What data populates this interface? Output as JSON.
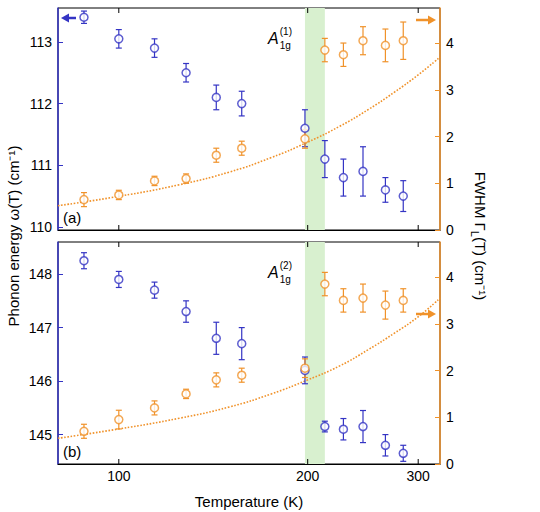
{
  "chart_data": [
    {
      "type": "scatter",
      "panel_label": "(a)",
      "annotation": {
        "text": "A",
        "sub": "1g",
        "sup": "(1)"
      },
      "y_label": "Phonon energy ω(T) (cm⁻¹)",
      "y2_label": {
        "text": "FWHM Γ",
        "sub": "L",
        "tail": "(T) (cm⁻¹)"
      },
      "log": "x",
      "tick_labels": "y",
      "x": [
        88,
        100,
        114,
        128,
        143,
        157,
        198,
        213,
        228,
        245,
        266,
        284
      ],
      "xlim": [
        80,
        325
      ],
      "xticks": [
        100,
        200,
        300
      ],
      "ylim": [
        109.95,
        113.55
      ],
      "yticks": [
        110,
        111,
        112,
        113
      ],
      "y2lim": [
        0,
        4.75
      ],
      "y2ticks": [
        0,
        1,
        2,
        3,
        4
      ],
      "shaded_x_range": {
        "range": [
          198,
          213
        ],
        "color": "#d8f0cf"
      },
      "series": [
        {
          "color": "#3434c4",
          "marker": "open circle",
          "values": [
            113.4,
            113.05,
            112.9,
            112.5,
            112.1,
            112.0,
            111.6,
            111.1,
            110.8,
            110.9,
            110.6,
            110.5
          ],
          "errors": [
            0.1,
            0.15,
            0.15,
            0.15,
            0.2,
            0.2,
            0.3,
            0.3,
            0.3,
            0.4,
            0.2,
            0.25
          ]
        },
        {
          "color": "#f0922a",
          "marker": "open circle",
          "axis": "y2",
          "values": [
            0.65,
            0.75,
            1.05,
            1.1,
            1.6,
            1.75,
            1.95,
            3.85,
            3.75,
            4.05,
            3.95,
            4.05
          ],
          "errors": [
            0.15,
            0.1,
            0.1,
            0.1,
            0.15,
            0.15,
            0.2,
            0.25,
            0.25,
            0.3,
            0.35,
            0.4
          ]
        },
        {
          "type": "line",
          "line_style": "dotted",
          "color": "#f0922a",
          "axis": "y2",
          "x": [
            80,
            100,
            125,
            150,
            175,
            200,
            225,
            250,
            275,
            300,
            325
          ],
          "values": [
            0.52,
            0.72,
            0.97,
            1.24,
            1.55,
            1.88,
            2.22,
            2.58,
            2.95,
            3.32,
            3.7
          ]
        }
      ]
    },
    {
      "type": "scatter",
      "panel_label": "(b)",
      "annotation": {
        "text": "A",
        "sub": "1g",
        "sup": "(2)"
      },
      "x_label": "Temperature (K)",
      "log": "x",
      "x": [
        88,
        100,
        114,
        128,
        143,
        157,
        198,
        213,
        228,
        245,
        266,
        284
      ],
      "xlim": [
        80,
        325
      ],
      "xticks": [
        100,
        200,
        300
      ],
      "ylim": [
        144.45,
        148.6
      ],
      "yticks": [
        145,
        146,
        147,
        148
      ],
      "y2lim": [
        0,
        4.75
      ],
      "y2ticks": [
        0,
        1,
        2,
        3,
        4
      ],
      "shaded_x_range": {
        "range": [
          198,
          213
        ],
        "color": "#d8f0cf"
      },
      "series": [
        {
          "color": "#3434c4",
          "marker": "open circle",
          "values": [
            148.25,
            147.9,
            147.7,
            147.3,
            146.8,
            146.7,
            146.2,
            145.15,
            145.1,
            145.15,
            144.8,
            144.65
          ],
          "errors": [
            0.15,
            0.15,
            0.15,
            0.2,
            0.3,
            0.3,
            0.25,
            0.1,
            0.2,
            0.3,
            0.2,
            0.15
          ]
        },
        {
          "color": "#f0922a",
          "marker": "open circle",
          "axis": "y2",
          "values": [
            0.7,
            0.95,
            1.2,
            1.5,
            1.8,
            1.9,
            2.05,
            3.85,
            3.5,
            3.55,
            3.4,
            3.5
          ],
          "errors": [
            0.15,
            0.2,
            0.15,
            0.1,
            0.15,
            0.15,
            0.2,
            0.25,
            0.25,
            0.3,
            0.3,
            0.25
          ]
        },
        {
          "type": "line",
          "line_style": "dotted",
          "color": "#f0922a",
          "axis": "y2",
          "x": [
            80,
            100,
            125,
            150,
            175,
            200,
            225,
            250,
            275,
            300,
            325
          ],
          "values": [
            0.55,
            0.75,
            0.98,
            1.22,
            1.5,
            1.8,
            2.1,
            2.45,
            2.8,
            3.15,
            3.55
          ]
        }
      ]
    }
  ]
}
